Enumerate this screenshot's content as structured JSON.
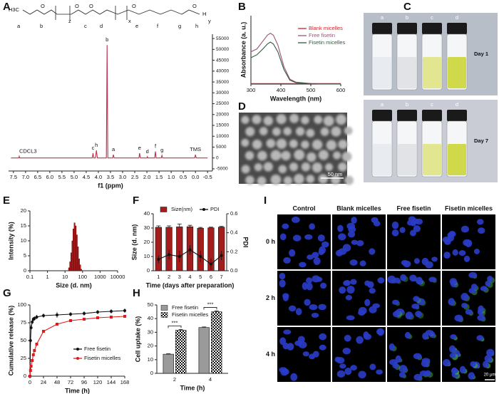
{
  "panel_labels": [
    "A",
    "B",
    "C",
    "D",
    "E",
    "F",
    "G",
    "H",
    "I"
  ],
  "structure": {
    "methyl": "H3C",
    "atom": "O",
    "end": "H",
    "repeats": [
      "z",
      "x",
      "y"
    ],
    "protons": [
      "a",
      "b",
      "c",
      "d",
      "e",
      "f",
      "g",
      "h"
    ]
  },
  "vials": {
    "letters": [
      "a",
      "b",
      "c",
      "d"
    ],
    "days": [
      "Day 1",
      "Day 7"
    ]
  },
  "tem": {
    "scale": "50 nm"
  },
  "confocal": {
    "columns": [
      "Control",
      "Blank micelles",
      "Free fisetin",
      "Fisetin micelles"
    ],
    "rows": [
      "0 h",
      "2 h",
      "4 h"
    ],
    "scale": "20 μm"
  },
  "chart_data": [
    {
      "type": "line",
      "x_label": "f1 (ppm)",
      "y_axis_side": "right",
      "xlim": [
        7.7,
        -0.7
      ],
      "xticks": [
        7.5,
        {
          "value": 7,
          "label": "7.0"
        },
        6.5,
        {
          "value": 6,
          "label": "6.0"
        },
        5.5,
        {
          "value": 5,
          "label": "5.0"
        },
        4.5,
        {
          "value": 4,
          "label": "4.0"
        },
        3.5,
        {
          "value": 3,
          "label": "3.0"
        },
        2.5,
        {
          "value": 2,
          "label": "2.0"
        },
        1.5,
        {
          "value": 1,
          "label": "1.0"
        },
        0.5,
        {
          "value": 0,
          "label": "0.0"
        },
        -0.5
      ],
      "ylim": [
        -6000,
        57000
      ],
      "yticks": [
        -5000,
        0,
        5000,
        10000,
        15000,
        20000,
        25000,
        30000,
        35000,
        40000,
        45000,
        50000,
        55000
      ],
      "x": [
        7.6,
        7.28,
        7.26,
        7.24,
        4.25,
        4.22,
        4.19,
        4.12,
        4.08,
        4.04,
        3.67,
        3.64,
        3.61,
        3.41,
        3.38,
        3.35,
        2.33,
        2.3,
        2.27,
        2.0,
        1.98,
        1.96,
        1.68,
        1.65,
        1.62,
        1.41,
        1.38,
        1.35,
        0.03,
        0.0,
        -0.03,
        -0.5
      ],
      "series": [
        {
          "color": "#c0304a",
          "values": [
            0,
            0,
            800,
            0,
            0,
            2200,
            0,
            0,
            3500,
            0,
            0,
            52000,
            0,
            0,
            1500,
            0,
            0,
            2200,
            0,
            0,
            600,
            0,
            0,
            3000,
            0,
            0,
            1200,
            0,
            0,
            1500,
            0,
            0
          ]
        }
      ],
      "peak_labels": [
        {
          "text": "CDCL3",
          "x": 7.26
        },
        {
          "text": "c",
          "x": 4.22
        },
        {
          "text": "h",
          "x": 4.08
        },
        {
          "text": "b",
          "x": 3.64
        },
        {
          "text": "a",
          "x": 3.38
        },
        {
          "text": "e",
          "x": 2.3
        },
        {
          "text": "d",
          "x": 1.98
        },
        {
          "text": "f",
          "x": 1.65
        },
        {
          "text": "g",
          "x": 1.38
        },
        {
          "text": "TMS",
          "x": 0.0
        }
      ]
    },
    {
      "type": "line",
      "x_label": "Wavelength (nm)",
      "y_label": "Absorbance (a. u.)",
      "legend": "right",
      "xlim": [
        300,
        600
      ],
      "xticks": [
        300,
        400,
        500,
        600
      ],
      "ylim": [
        0,
        0.7
      ],
      "x": [
        300,
        320,
        340,
        355,
        365,
        375,
        390,
        410,
        430,
        450,
        500,
        550,
        600
      ],
      "series": [
        {
          "name": "Blank micelles",
          "color": "#d0202a",
          "values": [
            0.005,
            0.005,
            0.005,
            0.005,
            0.005,
            0.005,
            0.005,
            0.005,
            0.005,
            0.005,
            0.005,
            0.005,
            0.005
          ]
        },
        {
          "name": "Free fisetin",
          "color": "#a0507a",
          "values": [
            0.33,
            0.36,
            0.44,
            0.5,
            0.52,
            0.5,
            0.4,
            0.18,
            0.05,
            0.02,
            0.005,
            0,
            0
          ]
        },
        {
          "name": "Fisetin micelles",
          "color": "#2e5a3a",
          "values": [
            0.27,
            0.3,
            0.36,
            0.41,
            0.43,
            0.41,
            0.33,
            0.15,
            0.04,
            0.015,
            0.004,
            0,
            0
          ]
        }
      ]
    },
    {
      "type": "histogram",
      "x_label": "Size (d. nm)",
      "y_label": "Intensity (%)",
      "log_x": true,
      "xlim": [
        0.1,
        10000
      ],
      "xticks": [
        0.1,
        1,
        10,
        100,
        1000,
        10000
      ],
      "ylim": [
        0,
        20
      ],
      "yticks": [
        0,
        5,
        10,
        15,
        20
      ],
      "color": "#b01818",
      "bins": [
        15.7,
        18.2,
        21.0,
        24.4,
        28.2,
        32.7,
        37.8,
        43.8,
        50.7,
        58.8,
        68.1,
        78.8,
        91.3
      ],
      "values": [
        1,
        3,
        6,
        10,
        14,
        16,
        15,
        12,
        8,
        4,
        2,
        0.5
      ]
    },
    {
      "type": "bar",
      "x_label": "Time (days after preparation)",
      "y_label": "Size (d. nm)",
      "y2_label": "PDI",
      "legend": "top",
      "categories": [
        "1",
        "2",
        "3",
        "4",
        "5",
        "6",
        "7"
      ],
      "ylim": [
        0,
        40
      ],
      "yticks": [
        0,
        10,
        20,
        30,
        40
      ],
      "y2lim": [
        0,
        0.6
      ],
      "y2ticks": [
        {
          "value": 0,
          "label": "0.0"
        },
        0.2,
        0.4,
        0.6
      ],
      "series": [
        {
          "name": "Size(nm)",
          "color": "#a51c1c",
          "values": [
            30.5,
            30.5,
            30.8,
            30.9,
            29.8,
            30.1,
            30.6
          ],
          "errors": [
            1,
            1,
            2,
            1,
            0.6,
            0.5,
            0.5
          ]
        },
        {
          "name": "PDI",
          "type": "line",
          "axis": "y2",
          "marker": "circle",
          "color": "#111111",
          "values": [
            0.12,
            0.17,
            0.15,
            0.22,
            0.15,
            0.07,
            0.16
          ],
          "errors": [
            0.04,
            0.05,
            0.06,
            0.05,
            0.06,
            0.06,
            0.05
          ]
        }
      ]
    },
    {
      "type": "line",
      "x_label": "Time (h)",
      "y_label": "Cumulative release (%)",
      "legend": "lower right",
      "xlim": [
        0,
        168
      ],
      "xticks": [
        0,
        24,
        48,
        72,
        96,
        120,
        144,
        168
      ],
      "ylim": [
        0,
        100
      ],
      "yticks": [
        0,
        25,
        50,
        75,
        100
      ],
      "x": [
        0,
        1,
        2,
        4,
        6,
        8,
        12,
        24,
        48,
        72,
        96,
        120,
        144,
        168
      ],
      "series": [
        {
          "name": "Free fisetin",
          "color": "#111111",
          "marker": "circle",
          "values": [
            0,
            50,
            68,
            76,
            80,
            81,
            83,
            85,
            86,
            87,
            88,
            90,
            91,
            92
          ],
          "errors": [
            0,
            5,
            4,
            3,
            3,
            3,
            3,
            3,
            4,
            3,
            3,
            3,
            3,
            3
          ]
        },
        {
          "name": "Fisetin micelles",
          "color": "#e01a1a",
          "marker": "square",
          "values": [
            0,
            8,
            14,
            22,
            30,
            36,
            45,
            63,
            73,
            78,
            80,
            82,
            83,
            84
          ]
        }
      ]
    },
    {
      "type": "bar",
      "x_label": "Time (h)",
      "y_label": "Cell uptake (%)",
      "legend": "upper left",
      "categories": [
        "2",
        "4"
      ],
      "ylim": [
        0,
        50
      ],
      "yticks": [
        0,
        10,
        20,
        30,
        40,
        50
      ],
      "significance": [
        "***",
        "***"
      ],
      "series": [
        {
          "name": "Free fisetin",
          "color": "#9a9a9a",
          "values": [
            14,
            33.5
          ],
          "errors": [
            0.3,
            0.4
          ]
        },
        {
          "name": "Fisetin micelles",
          "color": "#111111",
          "fill_pattern": "checkered",
          "values": [
            31.5,
            45
          ],
          "errors": [
            0.6,
            0.6
          ]
        }
      ]
    }
  ]
}
